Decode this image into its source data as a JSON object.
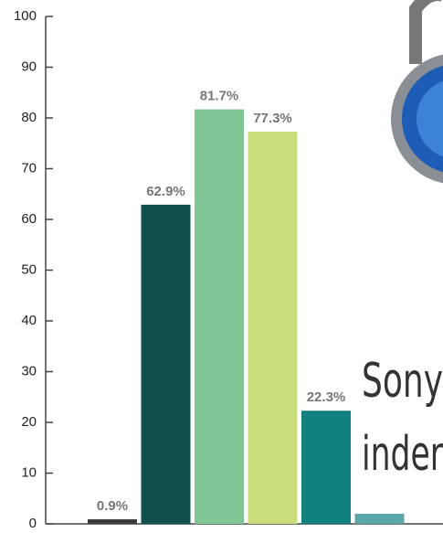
{
  "chart_data": {
    "type": "bar",
    "categories": [
      null,
      null,
      null,
      null,
      null,
      null
    ],
    "values": [
      0.9,
      62.9,
      81.7,
      77.3,
      22.3,
      2
    ],
    "value_labels": [
      "0.9%",
      "62.9%",
      "81.7%",
      "77.3%",
      "22.3%",
      null
    ],
    "colors": [
      "#3b3b3b",
      "#0f4f4c",
      "#80c594",
      "#c9dd7b",
      "#11817e",
      "#5ba6a9"
    ],
    "ylim": [
      0,
      100
    ],
    "yticks": [
      0,
      10,
      20,
      30,
      40,
      50,
      60,
      70,
      80,
      90,
      100
    ],
    "annotations": [
      "Sony",
      "inder"
    ]
  }
}
